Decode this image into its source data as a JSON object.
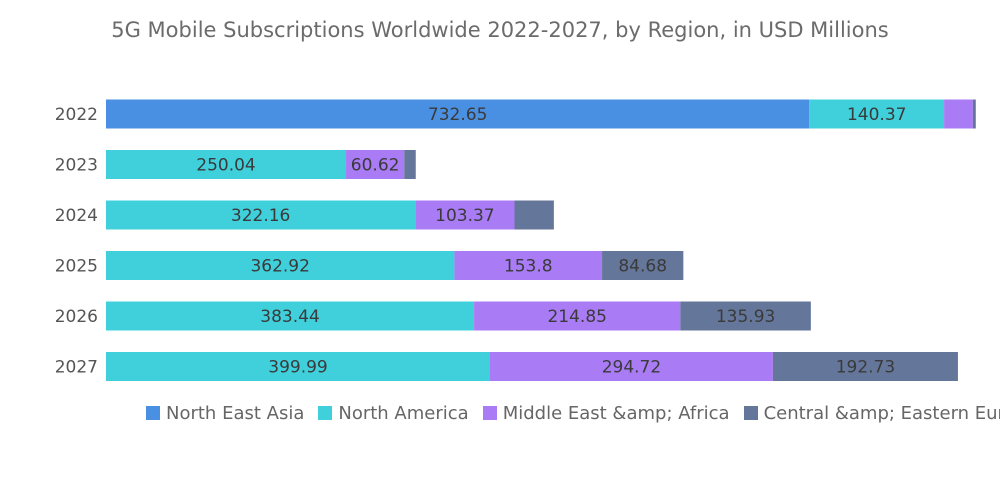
{
  "chart_data": {
    "type": "bar",
    "orientation": "horizontal",
    "stacked": true,
    "title": "5G Mobile Subscriptions Worldwide 2022-2027, by Region, in USD Millions",
    "categories": [
      "2022",
      "2023",
      "2024",
      "2025",
      "2026",
      "2027"
    ],
    "series": [
      {
        "name": "North East Asia",
        "color": "#4a90e2",
        "values": [
          732.65,
          0,
          0,
          0,
          0,
          0
        ],
        "labels": [
          "732.65",
          "",
          "",
          "",
          "",
          ""
        ]
      },
      {
        "name": "North America",
        "color": "#3fd0dc",
        "values": [
          140.37,
          250.04,
          322.16,
          362.92,
          383.44,
          399.99
        ],
        "labels": [
          "140.37",
          "250.04",
          "322.16",
          "362.92",
          "383.44",
          "399.99"
        ]
      },
      {
        "name": "Middle East &amp; Africa",
        "color": "#a97bf5",
        "values": [
          30,
          60.62,
          103.37,
          153.8,
          214.85,
          294.72
        ],
        "labels": [
          "",
          "60.62",
          "103.37",
          "153.8",
          "214.85",
          "294.72"
        ]
      },
      {
        "name": "Central &amp; Eastern Europe",
        "color": "#64769a",
        "values": [
          3,
          12,
          41,
          84.68,
          135.93,
          192.73
        ],
        "labels": [
          "",
          "",
          "",
          "84.68",
          "135.93",
          "192.73"
        ]
      }
    ],
    "xlim": [
      0,
      900
    ],
    "grid": false,
    "legend_position": "bottom"
  }
}
